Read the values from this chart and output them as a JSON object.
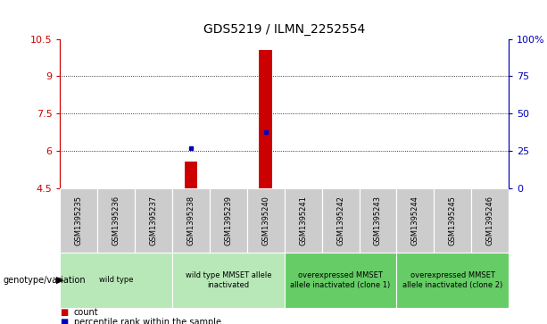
{
  "title": "GDS5219 / ILMN_2252554",
  "samples": [
    "GSM1395235",
    "GSM1395236",
    "GSM1395237",
    "GSM1395238",
    "GSM1395239",
    "GSM1395240",
    "GSM1395241",
    "GSM1395242",
    "GSM1395243",
    "GSM1395244",
    "GSM1395245",
    "GSM1395246"
  ],
  "count_values": [
    null,
    null,
    null,
    5.55,
    null,
    10.05,
    null,
    null,
    null,
    null,
    null,
    null
  ],
  "percentile_values": [
    null,
    null,
    null,
    6.1,
    null,
    6.75,
    null,
    null,
    null,
    null,
    null,
    null
  ],
  "ylim": [
    4.5,
    10.5
  ],
  "yticks": [
    4.5,
    6.0,
    7.5,
    9.0,
    10.5
  ],
  "ytick_labels": [
    "4.5",
    "6",
    "7.5",
    "9",
    "10.5"
  ],
  "y2ticks": [
    0,
    25,
    50,
    75,
    100
  ],
  "y2tick_labels": [
    "0",
    "25",
    "50",
    "75",
    "100%"
  ],
  "bar_color": "#cc0000",
  "dot_color": "#0000bb",
  "bar_width": 0.35,
  "cell_bg": "#cccccc",
  "group_color_light": "#aaddaa",
  "group_color_dark": "#55bb55",
  "genotype_label": "genotype/variation",
  "legend_count": "count",
  "legend_percentile": "percentile rank within the sample",
  "group_spans": [
    {
      "start": 0,
      "end": 2,
      "label": "wild type",
      "color": "#b8e8b8"
    },
    {
      "start": 3,
      "end": 5,
      "label": "wild type MMSET allele\ninactivated",
      "color": "#b8e8b8"
    },
    {
      "start": 6,
      "end": 8,
      "label": "overexpressed MMSET\nallele inactivated (clone 1)",
      "color": "#66cc66"
    },
    {
      "start": 9,
      "end": 11,
      "label": "overexpressed MMSET\nallele inactivated (clone 2)",
      "color": "#66cc66"
    }
  ]
}
